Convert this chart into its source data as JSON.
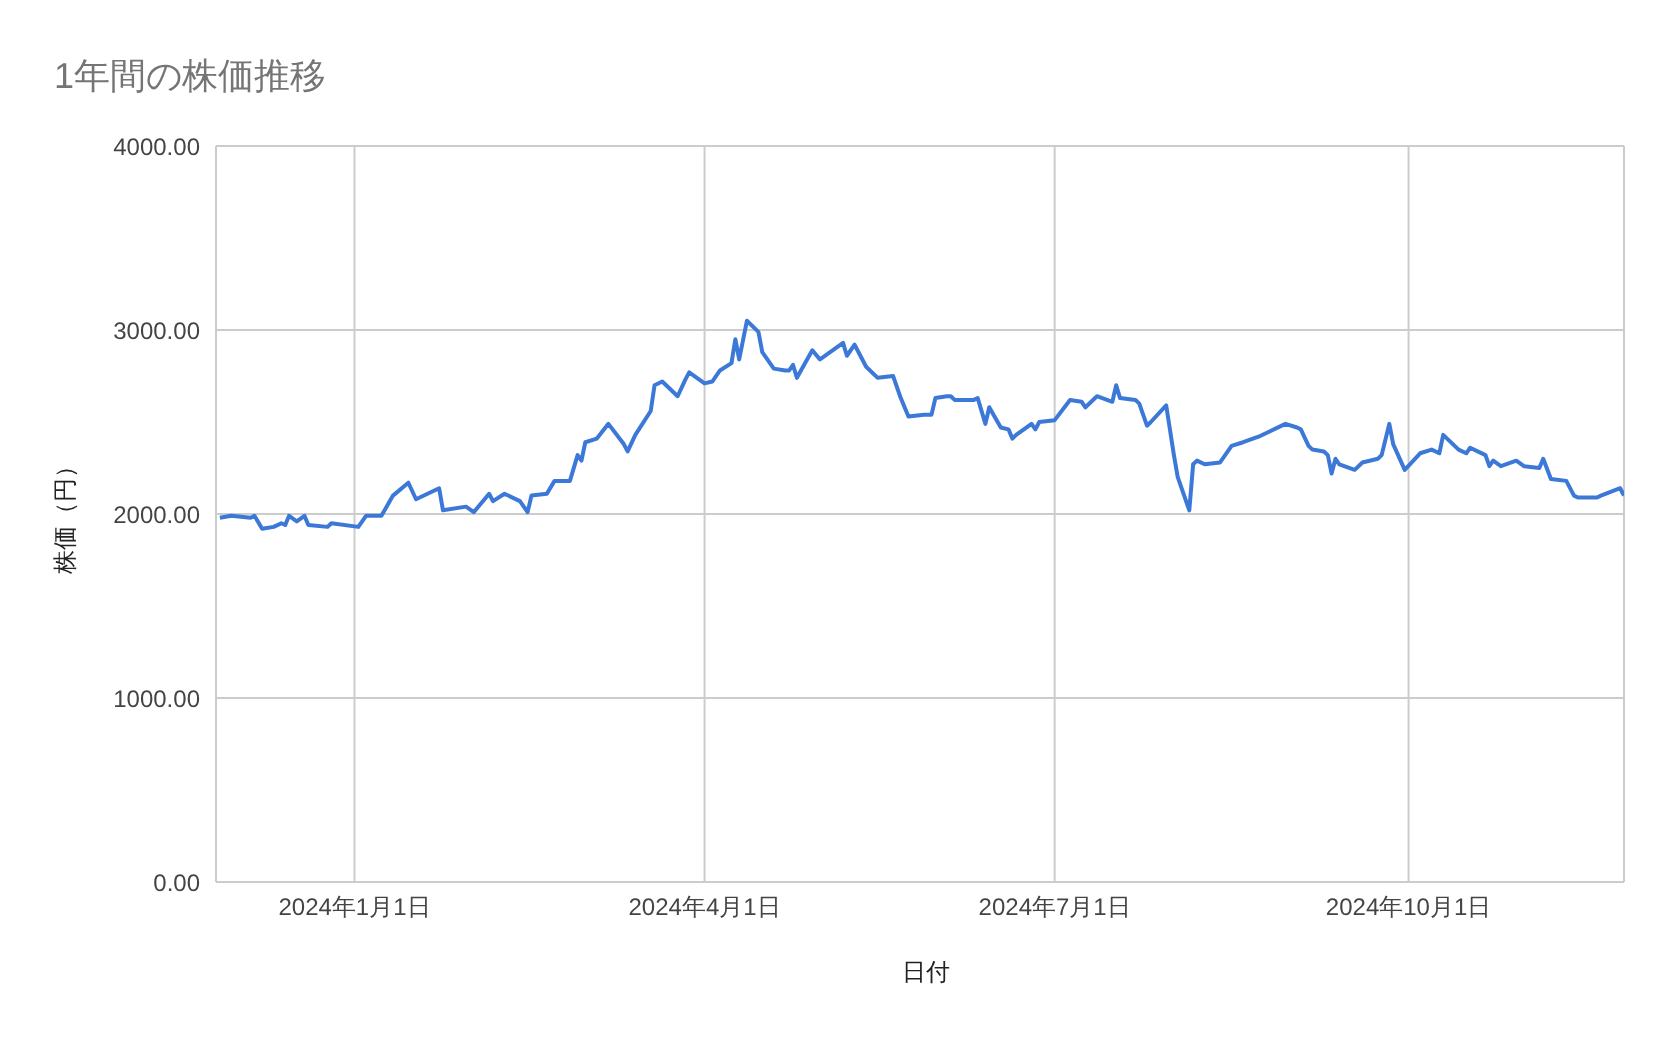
{
  "chart_data": {
    "type": "line",
    "title": "1年間の株価推移",
    "xlabel": "日付",
    "ylabel": "株価（円）",
    "x": [
      "2023-11-27",
      "2023-11-30",
      "2023-12-05",
      "2023-12-06",
      "2023-12-08",
      "2023-12-11",
      "2023-12-13",
      "2023-12-14",
      "2023-12-15",
      "2023-12-17",
      "2023-12-19",
      "2023-12-20",
      "2023-12-25",
      "2023-12-26",
      "2024-01-02",
      "2024-01-04",
      "2024-01-08",
      "2024-01-11",
      "2024-01-15",
      "2024-01-17",
      "2024-01-23",
      "2024-01-24",
      "2024-01-30",
      "2024-02-01",
      "2024-02-05",
      "2024-02-06",
      "2024-02-09",
      "2024-02-13",
      "2024-02-15",
      "2024-02-16",
      "2024-02-20",
      "2024-02-22",
      "2024-02-26",
      "2024-02-28",
      "2024-02-29",
      "2024-03-01",
      "2024-03-04",
      "2024-03-07",
      "2024-03-11",
      "2024-03-12",
      "2024-03-14",
      "2024-03-18",
      "2024-03-19",
      "2024-03-21",
      "2024-03-25",
      "2024-03-27",
      "2024-03-28",
      "2024-04-01",
      "2024-04-03",
      "2024-04-05",
      "2024-04-08",
      "2024-04-09",
      "2024-04-10",
      "2024-04-12",
      "2024-04-15",
      "2024-04-16",
      "2024-04-19",
      "2024-04-22",
      "2024-04-23",
      "2024-04-24",
      "2024-04-25",
      "2024-04-29",
      "2024-05-01",
      "2024-05-07",
      "2024-05-08",
      "2024-05-10",
      "2024-05-13",
      "2024-05-16",
      "2024-05-20",
      "2024-05-22",
      "2024-05-24",
      "2024-05-28",
      "2024-05-30",
      "2024-05-31",
      "2024-06-03",
      "2024-06-04",
      "2024-06-05",
      "2024-06-10",
      "2024-06-11",
      "2024-06-13",
      "2024-06-14",
      "2024-06-17",
      "2024-06-19",
      "2024-06-20",
      "2024-06-21",
      "2024-06-25",
      "2024-06-26",
      "2024-06-27",
      "2024-07-01",
      "2024-07-05",
      "2024-07-08",
      "2024-07-09",
      "2024-07-12",
      "2024-07-16",
      "2024-07-17",
      "2024-07-18",
      "2024-07-22",
      "2024-07-23",
      "2024-07-25",
      "2024-07-26",
      "2024-07-30",
      "2024-08-01",
      "2024-08-02",
      "2024-08-05",
      "2024-08-06",
      "2024-08-07",
      "2024-08-09",
      "2024-08-13",
      "2024-08-16",
      "2024-08-19",
      "2024-08-23",
      "2024-08-26",
      "2024-08-30",
      "2024-09-02",
      "2024-09-03",
      "2024-09-05",
      "2024-09-06",
      "2024-09-09",
      "2024-09-10",
      "2024-09-11",
      "2024-09-12",
      "2024-09-13",
      "2024-09-17",
      "2024-09-19",
      "2024-09-23",
      "2024-09-24",
      "2024-09-26",
      "2024-09-27",
      "2024-09-30",
      "2024-10-04",
      "2024-10-07",
      "2024-10-09",
      "2024-10-10",
      "2024-10-14",
      "2024-10-16",
      "2024-10-17",
      "2024-10-21",
      "2024-10-22",
      "2024-10-23",
      "2024-10-25",
      "2024-10-29",
      "2024-10-31",
      "2024-11-04",
      "2024-11-05",
      "2024-11-07",
      "2024-11-11",
      "2024-11-13",
      "2024-11-14",
      "2024-11-19",
      "2024-11-20",
      "2024-11-25",
      "2024-11-26"
    ],
    "series": [
      {
        "color": "#3c78d8",
        "values": [
          1980,
          1990,
          1980,
          1990,
          1920,
          1930,
          1950,
          1940,
          1990,
          1960,
          1990,
          1940,
          1930,
          1950,
          1930,
          1990,
          1990,
          2100,
          2170,
          2080,
          2140,
          2020,
          2040,
          2010,
          2110,
          2070,
          2110,
          2070,
          2010,
          2100,
          2110,
          2180,
          2180,
          2320,
          2290,
          2390,
          2410,
          2490,
          2380,
          2340,
          2430,
          2560,
          2700,
          2720,
          2640,
          2730,
          2770,
          2710,
          2720,
          2780,
          2820,
          2950,
          2840,
          3050,
          2990,
          2880,
          2790,
          2780,
          2780,
          2810,
          2740,
          2890,
          2840,
          2930,
          2860,
          2920,
          2800,
          2740,
          2750,
          2630,
          2530,
          2540,
          2540,
          2630,
          2640,
          2640,
          2620,
          2620,
          2630,
          2490,
          2580,
          2470,
          2460,
          2410,
          2430,
          2490,
          2460,
          2500,
          2510,
          2620,
          2610,
          2580,
          2640,
          2610,
          2700,
          2630,
          2620,
          2600,
          2480,
          2500,
          2590,
          2320,
          2200,
          2020,
          2270,
          2290,
          2270,
          2280,
          2370,
          2390,
          2420,
          2450,
          2490,
          2470,
          2460,
          2370,
          2350,
          2340,
          2320,
          2220,
          2300,
          2270,
          2240,
          2280,
          2300,
          2320,
          2490,
          2380,
          2240,
          2330,
          2350,
          2330,
          2430,
          2350,
          2330,
          2360,
          2320,
          2260,
          2290,
          2260,
          2290,
          2260,
          2250,
          2300,
          2190,
          2180,
          2100,
          2090,
          2090,
          2100,
          2140,
          2100
        ]
      }
    ],
    "xlim": [
      "2023-11-26",
      "2024-11-26"
    ],
    "xticks": [
      {
        "value": "2024-01-01",
        "label": "2024年1月1日"
      },
      {
        "value": "2024-04-01",
        "label": "2024年4月1日"
      },
      {
        "value": "2024-07-01",
        "label": "2024年7月1日"
      },
      {
        "value": "2024-10-01",
        "label": "2024年10月1日"
      }
    ],
    "ylim": [
      0,
      4000
    ],
    "yticks": [
      {
        "value": 0,
        "label": "0.00"
      },
      {
        "value": 1000,
        "label": "1000.00"
      },
      {
        "value": 2000,
        "label": "2000.00"
      },
      {
        "value": 3000,
        "label": "3000.00"
      },
      {
        "value": 4000,
        "label": "4000.00"
      }
    ],
    "grid": true,
    "legend": false,
    "marker": "none",
    "line_style": "solid"
  }
}
